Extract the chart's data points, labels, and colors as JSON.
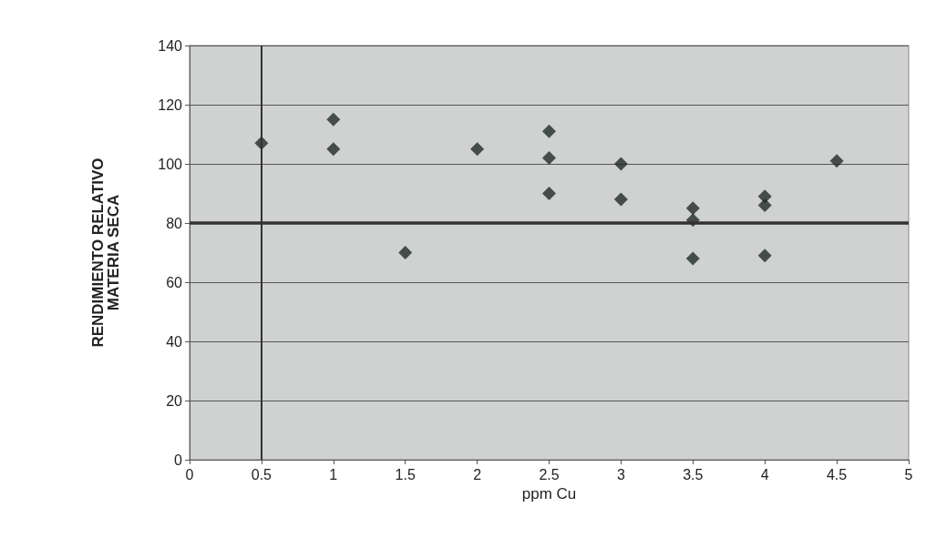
{
  "chart_data": {
    "type": "scatter",
    "xlabel": "ppm Cu",
    "ylabel": "RENDIMIENTO RELATIVO\nMATERIA SECA",
    "x": [
      0.5,
      1,
      1,
      1.5,
      2,
      2.5,
      2.5,
      2.5,
      3,
      3,
      3.5,
      3.5,
      3.5,
      4,
      4,
      4,
      4.5
    ],
    "values": [
      107,
      115,
      105,
      70,
      105,
      111,
      102,
      90,
      100,
      88,
      85,
      81,
      68,
      89,
      86,
      69,
      101
    ],
    "color": "#222a2a",
    "marker": "diamond",
    "xlim": [
      0,
      5
    ],
    "xticks": [
      0,
      0.5,
      1,
      1.5,
      2,
      2.5,
      3,
      3.5,
      4,
      4.5,
      5
    ],
    "ylim": [
      0,
      140
    ],
    "yticks": [
      0,
      20,
      40,
      60,
      80,
      100,
      120,
      140
    ],
    "grid": "y",
    "ref_lines": [
      {
        "axis": "x",
        "value": 0.5,
        "color": "#333333"
      },
      {
        "axis": "y",
        "value": 80,
        "color": "#333333"
      }
    ]
  }
}
